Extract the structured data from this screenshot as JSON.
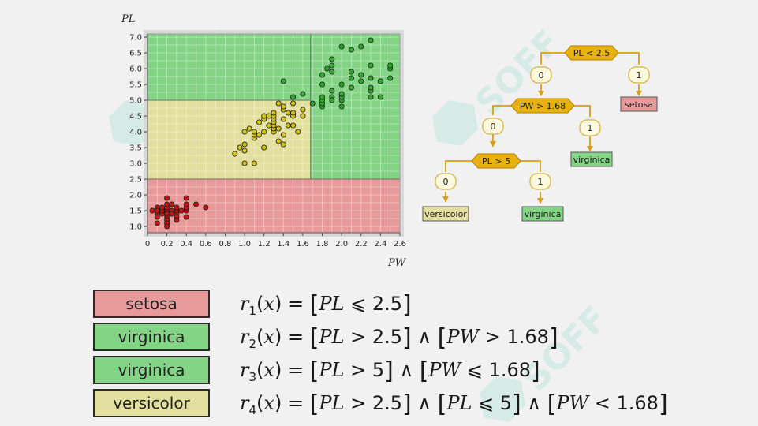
{
  "colors": {
    "setosa": "#e89a9a",
    "virginica": "#84d486",
    "versicolor": "#e3df9e",
    "node": "#e8b20e",
    "node_edge": "#b37f00",
    "edge": "#d8a010",
    "branch_fill": "#fbfadf"
  },
  "watermark": [
    "SOFF",
    "SOFF",
    "SOFF"
  ],
  "chart_data": {
    "type": "scatter",
    "xlabel": "PW",
    "ylabel": "PL",
    "xlim": [
      0,
      2.6
    ],
    "ylim": [
      0.8,
      7.1
    ],
    "xticks": [
      "0",
      "0.2",
      "0.4",
      "0.6",
      "0.8",
      "1.0",
      "1.2",
      "1.4",
      "1.6",
      "1.8",
      "2.0",
      "2.2",
      "2.4",
      "2.6"
    ],
    "yticks": [
      "1.0",
      "1.5",
      "2.0",
      "2.5",
      "3.0",
      "3.5",
      "4.0",
      "4.5",
      "5.0",
      "5.5",
      "6.0",
      "6.5",
      "7.0"
    ],
    "regions": [
      {
        "class": "setosa",
        "x": [
          0,
          2.6
        ],
        "y": [
          0.8,
          2.5
        ]
      },
      {
        "class": "versicolor",
        "x": [
          0,
          1.68
        ],
        "y": [
          2.5,
          5.0
        ]
      },
      {
        "class": "virginica",
        "x": [
          0,
          1.68
        ],
        "y": [
          5.0,
          7.1
        ]
      },
      {
        "class": "virginica",
        "x": [
          1.68,
          2.6
        ],
        "y": [
          2.5,
          7.1
        ]
      }
    ],
    "series": [
      {
        "class": "setosa",
        "color": "#c41414",
        "points": [
          [
            0.1,
            1.4
          ],
          [
            0.1,
            1.5
          ],
          [
            0.1,
            1.6
          ],
          [
            0.1,
            1.3
          ],
          [
            0.1,
            1.5
          ],
          [
            0.15,
            1.4
          ],
          [
            0.15,
            1.5
          ],
          [
            0.2,
            1.4
          ],
          [
            0.2,
            1.5
          ],
          [
            0.2,
            1.3
          ],
          [
            0.2,
            1.6
          ],
          [
            0.2,
            1.4
          ],
          [
            0.2,
            1.7
          ],
          [
            0.2,
            1.2
          ],
          [
            0.2,
            1.1
          ],
          [
            0.25,
            1.5
          ],
          [
            0.25,
            1.4
          ],
          [
            0.3,
            1.4
          ],
          [
            0.3,
            1.3
          ],
          [
            0.3,
            1.5
          ],
          [
            0.3,
            1.6
          ],
          [
            0.2,
            1.0
          ],
          [
            0.2,
            1.9
          ],
          [
            0.4,
            1.5
          ],
          [
            0.4,
            1.6
          ],
          [
            0.4,
            1.7
          ],
          [
            0.4,
            1.9
          ],
          [
            0.4,
            1.3
          ],
          [
            0.5,
            1.7
          ],
          [
            0.6,
            1.6
          ],
          [
            0.1,
            1.1
          ],
          [
            0.15,
            1.6
          ],
          [
            0.35,
            1.5
          ],
          [
            0.25,
            1.7
          ],
          [
            0.05,
            1.5
          ],
          [
            0.3,
            1.2
          ]
        ]
      },
      {
        "class": "versicolor",
        "color": "#d2c21a",
        "points": [
          [
            1.0,
            3.0
          ],
          [
            0.9,
            3.3
          ],
          [
            0.95,
            3.5
          ],
          [
            1.0,
            3.4
          ],
          [
            1.0,
            3.6
          ],
          [
            1.0,
            4.0
          ],
          [
            1.05,
            4.1
          ],
          [
            1.1,
            3.8
          ],
          [
            1.1,
            3.9
          ],
          [
            1.1,
            4.0
          ],
          [
            1.15,
            3.9
          ],
          [
            1.2,
            4.0
          ],
          [
            1.2,
            4.4
          ],
          [
            1.2,
            4.5
          ],
          [
            1.25,
            4.2
          ],
          [
            1.3,
            4.0
          ],
          [
            1.3,
            4.1
          ],
          [
            1.3,
            4.2
          ],
          [
            1.3,
            4.3
          ],
          [
            1.3,
            4.4
          ],
          [
            1.3,
            4.5
          ],
          [
            1.3,
            4.6
          ],
          [
            1.35,
            3.7
          ],
          [
            1.35,
            4.1
          ],
          [
            1.4,
            3.9
          ],
          [
            1.4,
            4.4
          ],
          [
            1.4,
            4.7
          ],
          [
            1.4,
            4.8
          ],
          [
            1.45,
            4.6
          ],
          [
            1.5,
            4.5
          ],
          [
            1.5,
            4.6
          ],
          [
            1.5,
            4.9
          ],
          [
            1.5,
            4.2
          ],
          [
            1.55,
            4.0
          ],
          [
            1.6,
            4.5
          ],
          [
            1.6,
            4.7
          ],
          [
            1.35,
            4.9
          ],
          [
            1.25,
            4.5
          ],
          [
            1.15,
            4.3
          ],
          [
            1.45,
            4.2
          ],
          [
            1.2,
            3.5
          ],
          [
            1.4,
            3.6
          ],
          [
            1.1,
            3.0
          ]
        ]
      },
      {
        "class": "virginica",
        "color": "#31a82e",
        "points": [
          [
            1.4,
            5.6
          ],
          [
            1.5,
            5.1
          ],
          [
            1.8,
            4.8
          ],
          [
            1.8,
            4.9
          ],
          [
            1.8,
            5.0
          ],
          [
            1.8,
            5.1
          ],
          [
            1.8,
            5.5
          ],
          [
            1.8,
            5.8
          ],
          [
            1.85,
            6.0
          ],
          [
            1.9,
            5.1
          ],
          [
            1.9,
            5.0
          ],
          [
            1.9,
            5.3
          ],
          [
            1.9,
            6.1
          ],
          [
            1.9,
            6.3
          ],
          [
            2.0,
            5.0
          ],
          [
            2.0,
            5.1
          ],
          [
            2.0,
            5.2
          ],
          [
            2.0,
            5.5
          ],
          [
            2.0,
            6.7
          ],
          [
            2.1,
            5.4
          ],
          [
            2.1,
            5.7
          ],
          [
            2.1,
            5.9
          ],
          [
            2.1,
            6.6
          ],
          [
            2.2,
            5.6
          ],
          [
            2.2,
            5.8
          ],
          [
            2.2,
            6.7
          ],
          [
            2.3,
            5.1
          ],
          [
            2.3,
            5.3
          ],
          [
            2.3,
            5.4
          ],
          [
            2.3,
            5.7
          ],
          [
            2.3,
            6.1
          ],
          [
            2.3,
            6.9
          ],
          [
            2.4,
            5.1
          ],
          [
            2.4,
            5.6
          ],
          [
            2.5,
            5.7
          ],
          [
            2.5,
            6.0
          ],
          [
            2.5,
            6.1
          ],
          [
            1.6,
            5.2
          ],
          [
            1.7,
            4.9
          ],
          [
            1.9,
            5.9
          ],
          [
            2.0,
            4.8
          ],
          [
            2.4,
            5.6
          ]
        ]
      }
    ]
  },
  "tree": {
    "nodes": {
      "root": "PL < 2.5",
      "n2": "PW > 1.68",
      "n3": "PL > 5"
    },
    "branches": {
      "r0": "0",
      "r1": "1",
      "b2_0": "0",
      "b2_1": "1",
      "b3_0": "0",
      "b3_1": "1"
    },
    "leaves": {
      "l_setosa": "setosa",
      "l_virg1": "virginica",
      "l_virg2": "virginica",
      "l_vers": "versicolor"
    }
  },
  "rules": [
    {
      "label": "setosa",
      "class": "setosa",
      "index": "1",
      "terms": [
        [
          "PL",
          "⩽",
          "2.5"
        ]
      ]
    },
    {
      "label": "virginica",
      "class": "virginica",
      "index": "2",
      "terms": [
        [
          "PL",
          ">",
          "2.5"
        ],
        [
          "PW",
          ">",
          "1.68"
        ]
      ]
    },
    {
      "label": "virginica",
      "class": "virginica",
      "index": "3",
      "terms": [
        [
          "PL",
          ">",
          "5"
        ],
        [
          "PW",
          "⩽",
          "1.68"
        ]
      ]
    },
    {
      "label": "versicolor",
      "class": "versicolor",
      "index": "4",
      "terms": [
        [
          "PL",
          ">",
          "2.5"
        ],
        [
          "PL",
          "⩽",
          "5"
        ],
        [
          "PW",
          "<",
          "1.68"
        ]
      ]
    }
  ]
}
